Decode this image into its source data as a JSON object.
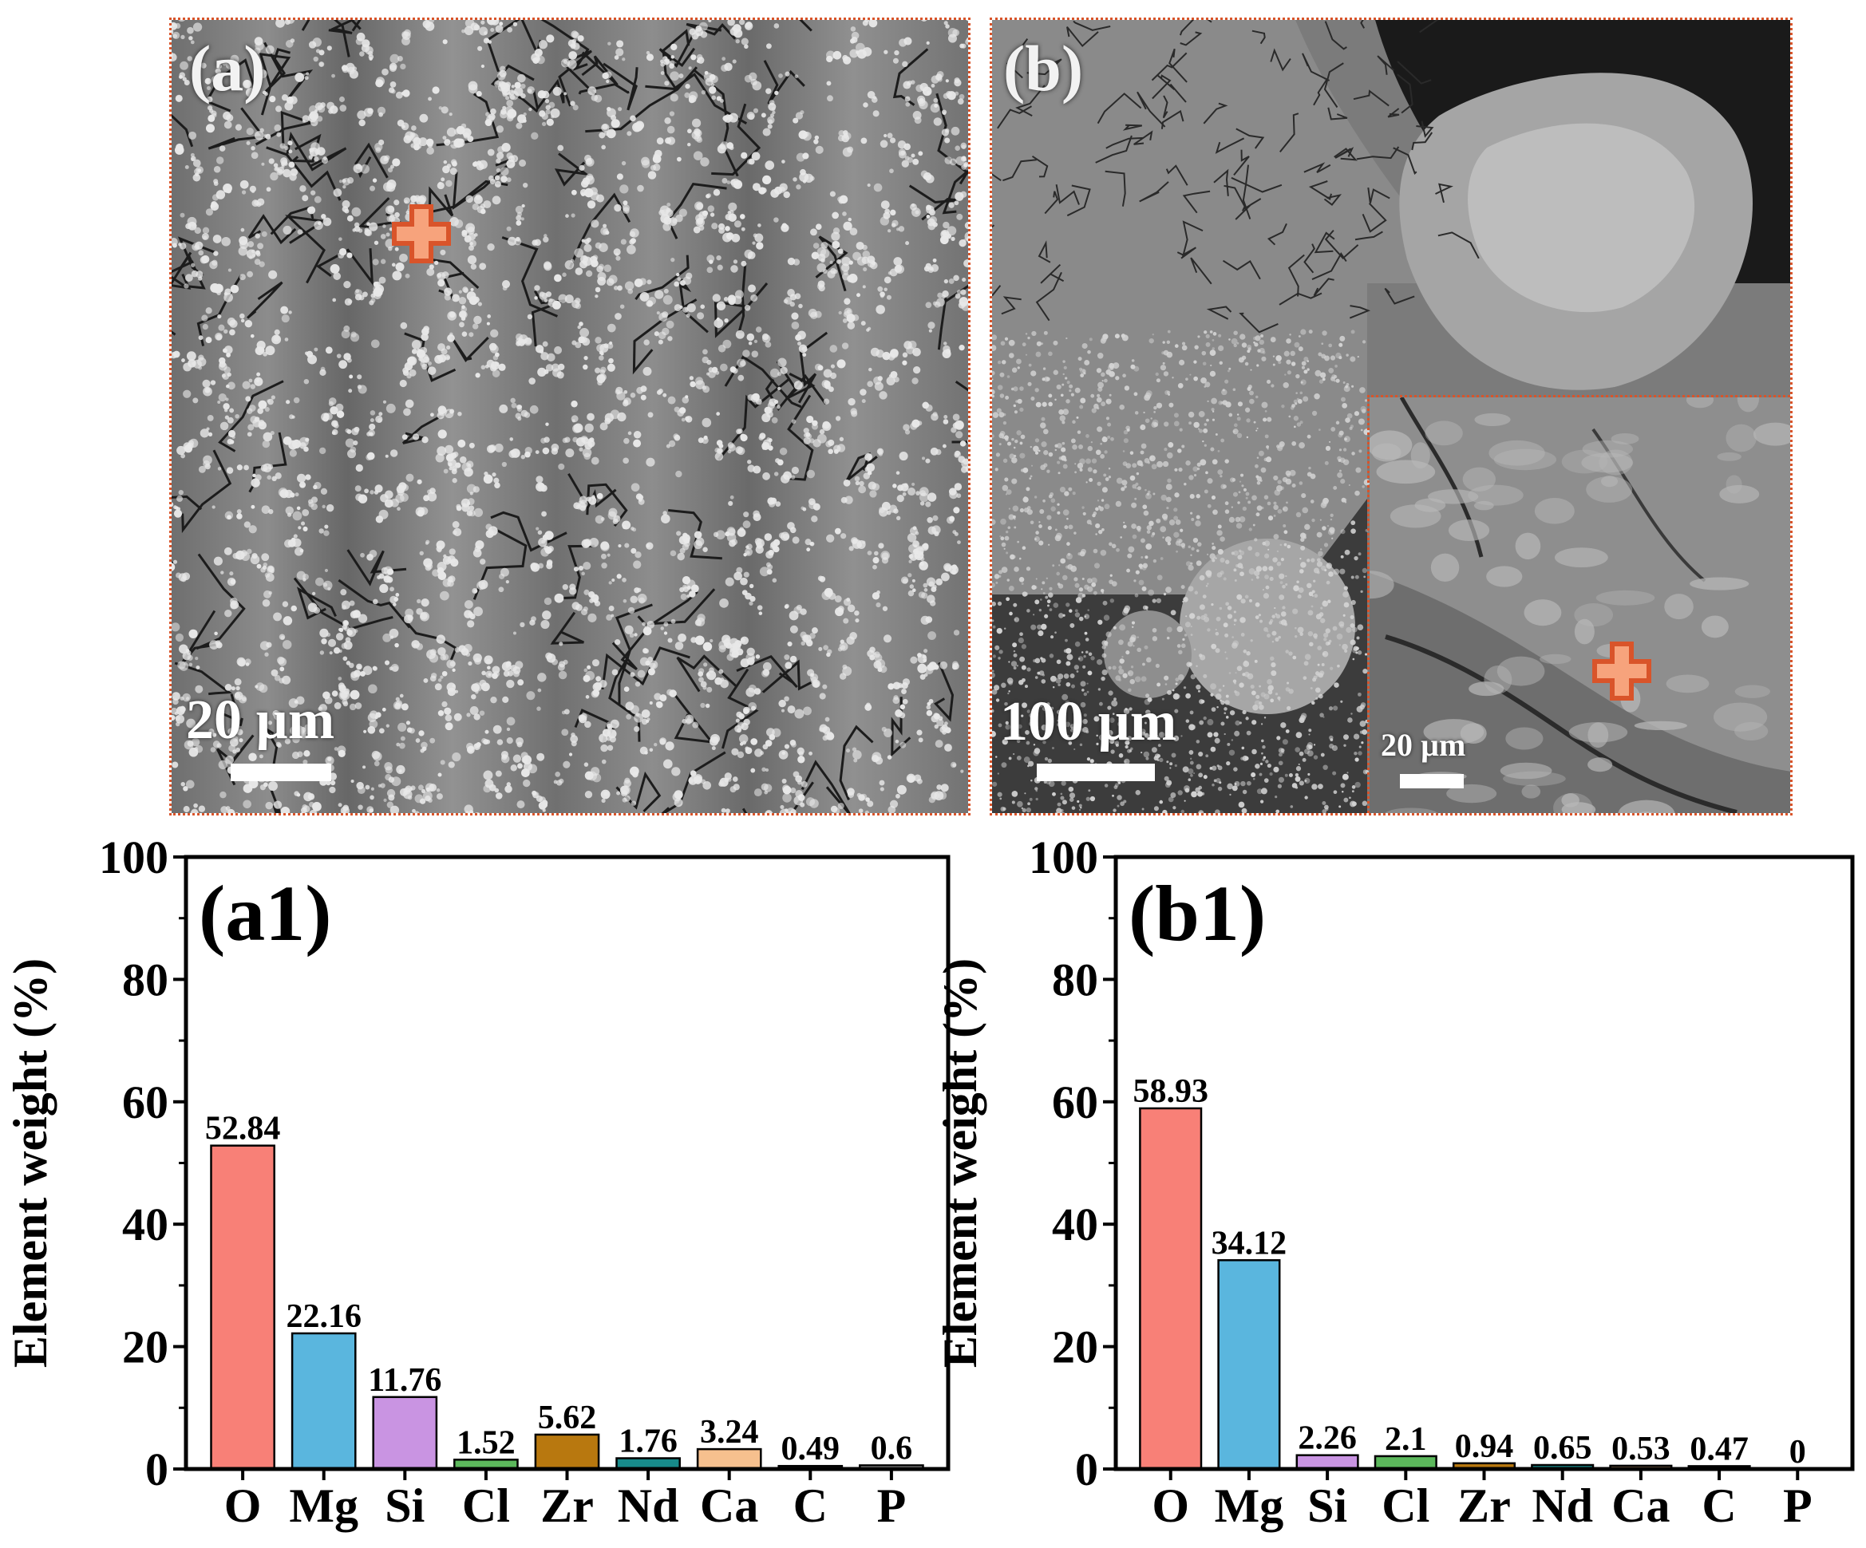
{
  "images": {
    "a": {
      "panel_label": "(a)",
      "scale_label": "20 µm"
    },
    "b": {
      "panel_label": "(b)",
      "scale_label": "100 µm",
      "inset_scale_label": "20 µm"
    }
  },
  "colors": {
    "O": "#f88077",
    "Mg": "#5ab6de",
    "Si": "#c994e2",
    "Cl": "#5cb85c",
    "Zr": "#b8780f",
    "Nd": "#178a8a",
    "Ca": "#f6c08e",
    "C": "#9a9a9a",
    "P": "#bdbdbd",
    "marker": "#ef7a45",
    "border": "#d9542a"
  },
  "chart_data": [
    {
      "type": "bar",
      "panel_label": "(a1)",
      "categories": [
        "O",
        "Mg",
        "Si",
        "Cl",
        "Zr",
        "Nd",
        "Ca",
        "C",
        "P"
      ],
      "values": [
        52.84,
        22.16,
        11.76,
        1.52,
        5.62,
        1.76,
        3.24,
        0.49,
        0.6
      ],
      "value_labels": [
        "52.84",
        "22.16",
        "11.76",
        "1.52",
        "5.62",
        "1.76",
        "3.24",
        "0.49",
        "0.6"
      ],
      "ylabel": "Element weight (%)",
      "xlabel": "",
      "ylim": [
        0,
        100
      ],
      "yticks": [
        0,
        20,
        40,
        60,
        80,
        100
      ],
      "grid": false
    },
    {
      "type": "bar",
      "panel_label": "(b1)",
      "categories": [
        "O",
        "Mg",
        "Si",
        "Cl",
        "Zr",
        "Nd",
        "Ca",
        "C",
        "P"
      ],
      "values": [
        58.93,
        34.12,
        2.26,
        2.1,
        0.94,
        0.65,
        0.53,
        0.47,
        0
      ],
      "value_labels": [
        "58.93",
        "34.12",
        "2.26",
        "2.1",
        "0.94",
        "0.65",
        "0.53",
        "0.47",
        "0"
      ],
      "ylabel": "Element weight (%)",
      "xlabel": "",
      "ylim": [
        0,
        100
      ],
      "yticks": [
        0,
        20,
        40,
        60,
        80,
        100
      ],
      "grid": false
    }
  ]
}
